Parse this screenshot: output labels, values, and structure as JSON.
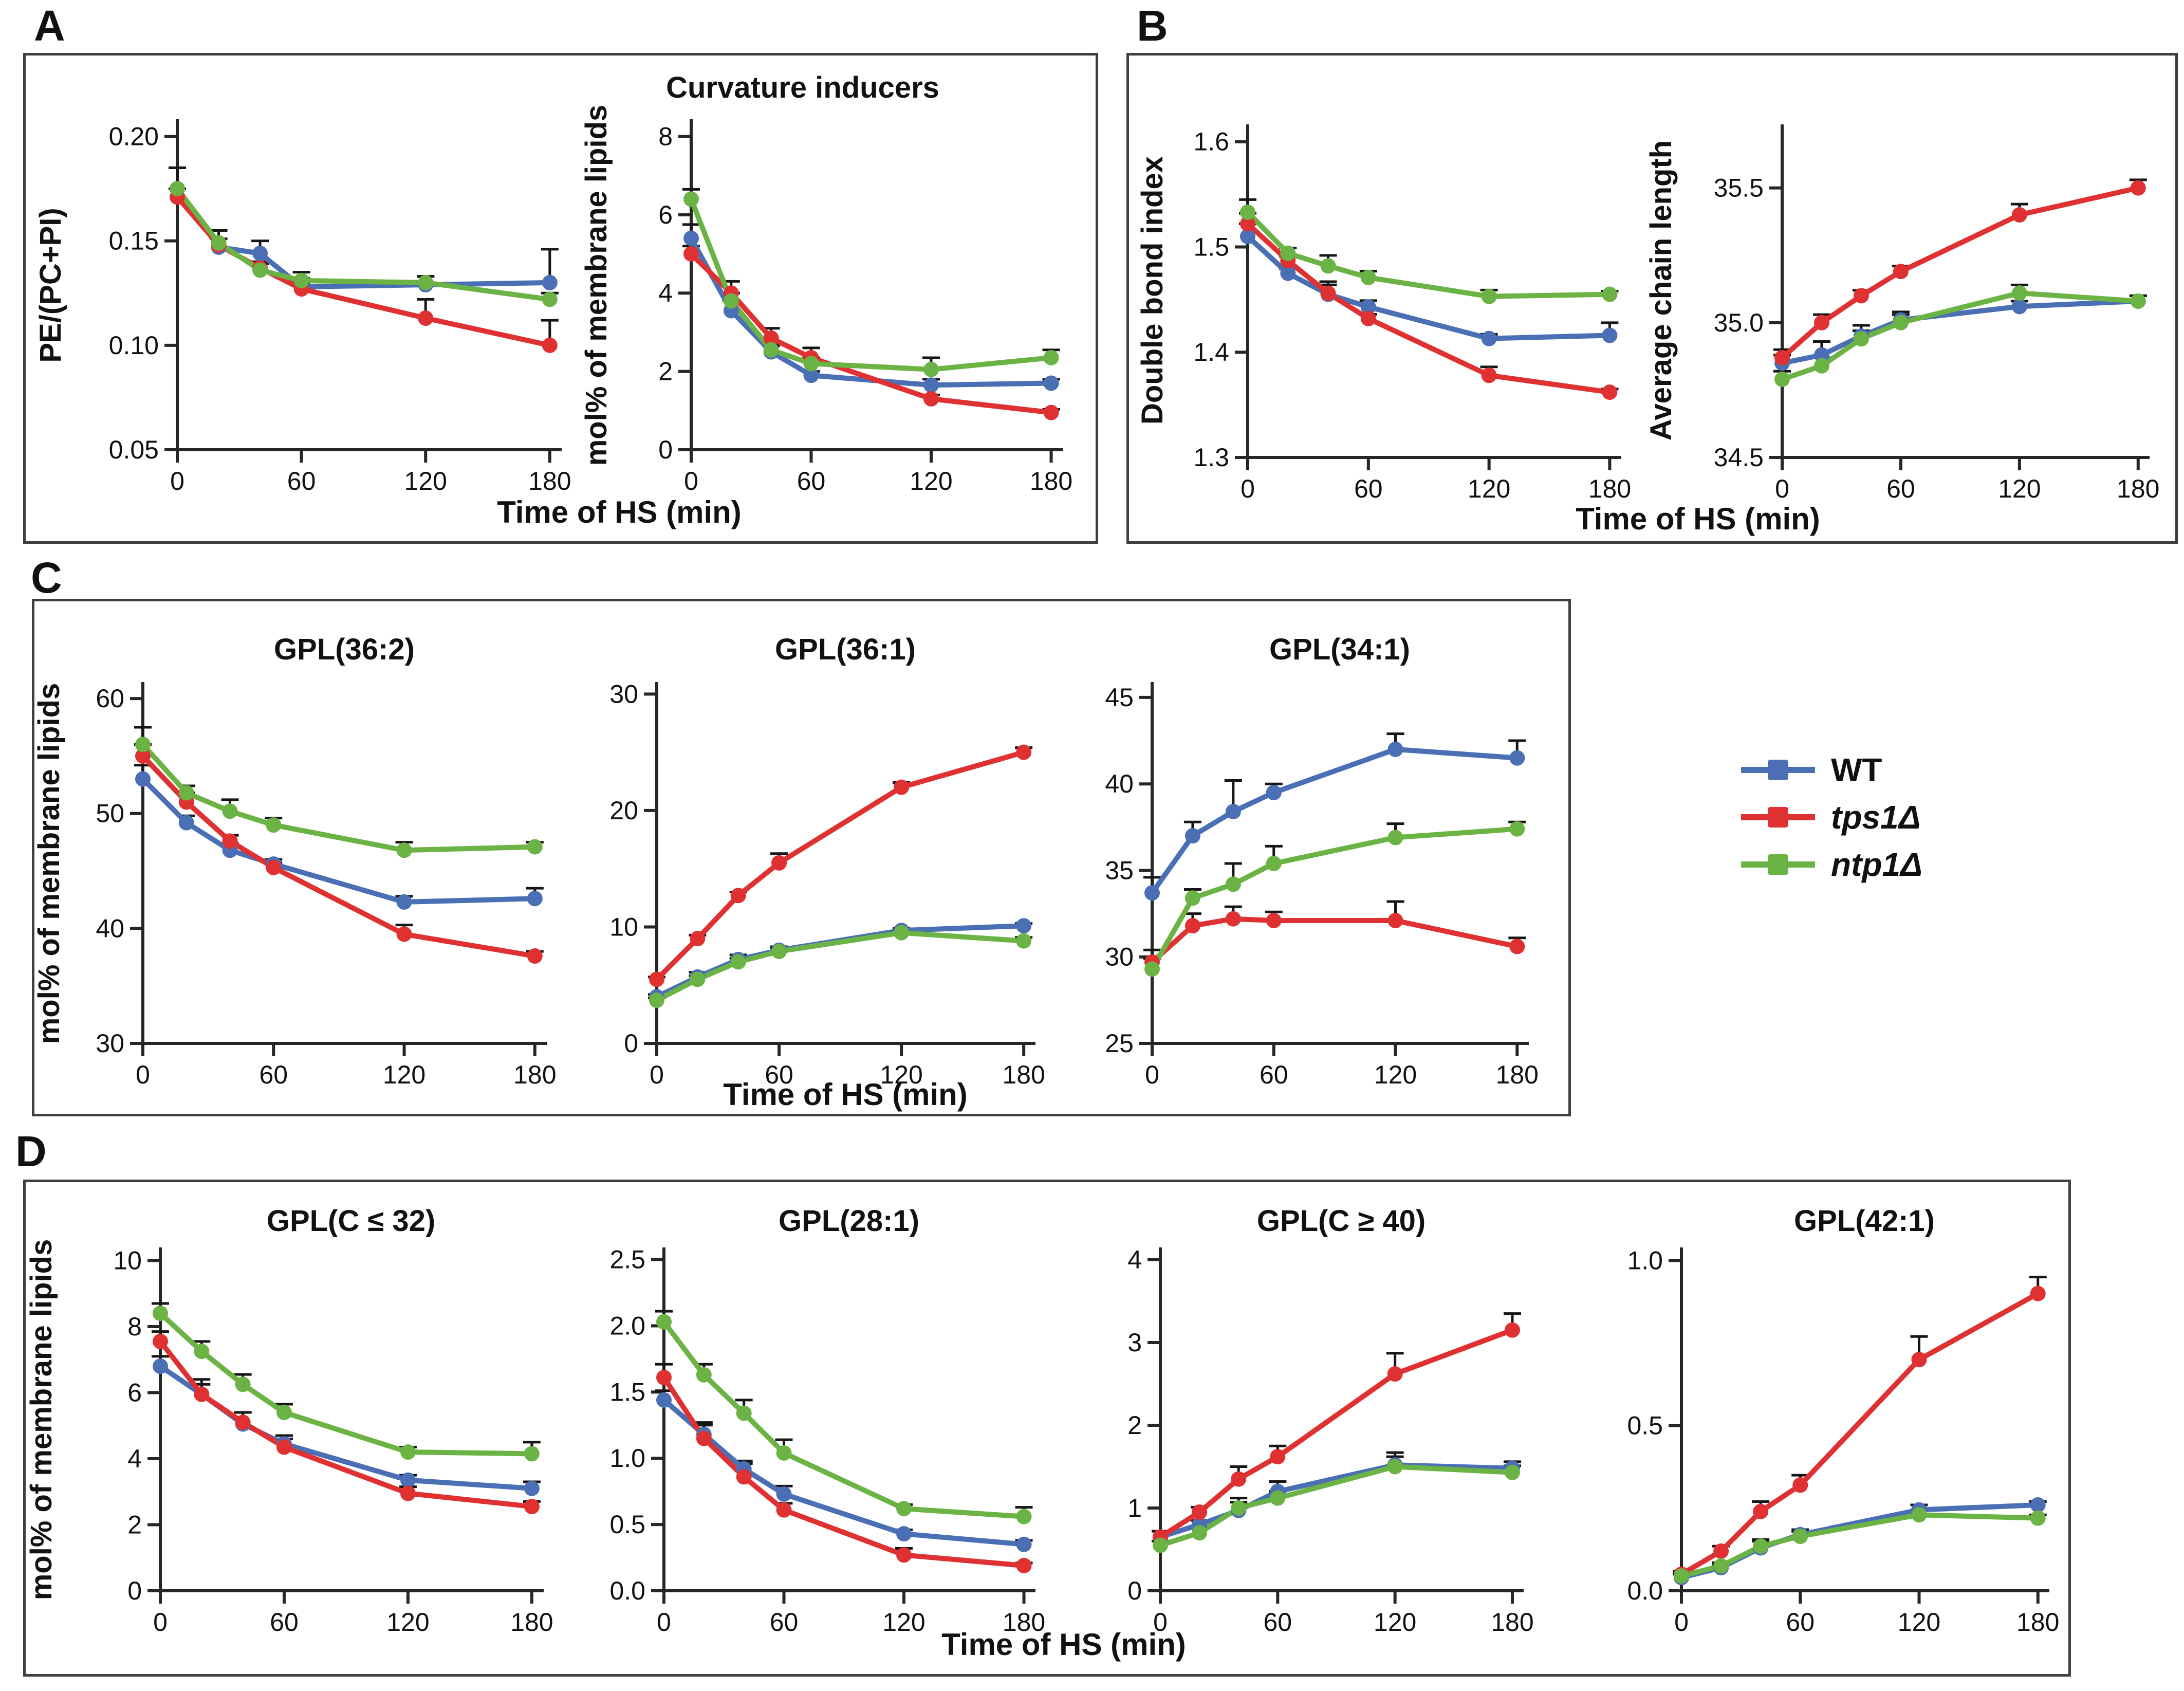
{
  "figure": {
    "panels": [
      {
        "label": "A",
        "xlabel": "Time of HS (min)"
      },
      {
        "label": "B",
        "xlabel": "Time of HS (min)"
      },
      {
        "label": "C",
        "xlabel": "Time of HS (min)"
      },
      {
        "label": "D",
        "xlabel": "Time of HS (min)"
      }
    ]
  },
  "legend": {
    "items": [
      {
        "label": "WT",
        "color": "#4A6FB5",
        "italic": false
      },
      {
        "label": "tps1Δ",
        "color": "#E03132",
        "italic": true
      },
      {
        "label": "ntp1Δ",
        "color": "#6CB345",
        "italic": true
      }
    ]
  },
  "chart_data": [
    {
      "id": "A1",
      "panel": "A",
      "type": "line",
      "title": "",
      "ylabel": "PE/(PC+PI)",
      "x": [
        0,
        20,
        40,
        60,
        120,
        180
      ],
      "xlim": [
        0,
        185
      ],
      "xticks": [
        0,
        60,
        120,
        180
      ],
      "xtick_labels": [
        "0",
        "60",
        "120",
        "180"
      ],
      "ylim": [
        0.05,
        0.2075
      ],
      "yticks": [
        0.05,
        0.1,
        0.15,
        0.2
      ],
      "ytick_labels": [
        "0.05",
        "0.10",
        "0.15",
        "0.20"
      ],
      "series": [
        {
          "name": "WT",
          "values": [
            0.175,
            0.147,
            0.144,
            0.128,
            0.129,
            0.13
          ],
          "err": [
            0.01,
            0.004,
            0.006,
            0.004,
            0.004,
            0.016
          ]
        },
        {
          "name": "tps1Δ",
          "values": [
            0.171,
            0.148,
            0.137,
            0.127,
            0.113,
            0.1
          ],
          "err": [
            0.004,
            0.007,
            0.003,
            0.003,
            0.009,
            0.012
          ]
        },
        {
          "name": "ntp1Δ",
          "values": [
            0.175,
            0.149,
            0.136,
            0.131,
            0.13,
            0.122
          ],
          "err": [
            0.01,
            0.006,
            0.003,
            0.004,
            0.003,
            0.003
          ]
        }
      ]
    },
    {
      "id": "A2",
      "panel": "A",
      "type": "line",
      "title": "Curvature inducers",
      "ylabel": "mol% of membrane lipids",
      "x": [
        0,
        20,
        40,
        60,
        120,
        180
      ],
      "xlim": [
        0,
        185
      ],
      "xticks": [
        0,
        60,
        120,
        180
      ],
      "xtick_labels": [
        "0",
        "60",
        "120",
        "180"
      ],
      "ylim": [
        0,
        8.4
      ],
      "yticks": [
        0,
        2,
        4,
        6,
        8
      ],
      "ytick_labels": [
        "0",
        "2",
        "4",
        "6",
        "8"
      ],
      "series": [
        {
          "name": "WT",
          "values": [
            5.4,
            3.55,
            2.5,
            1.9,
            1.65,
            1.7
          ],
          "err": [
            0.35,
            0.25,
            0.15,
            0.1,
            0.15,
            0.1
          ]
        },
        {
          "name": "tps1Δ",
          "values": [
            5.0,
            4.0,
            2.85,
            2.35,
            1.3,
            0.95
          ],
          "err": [
            0.2,
            0.3,
            0.25,
            0.25,
            0.1,
            0.08
          ]
        },
        {
          "name": "ntp1Δ",
          "values": [
            6.4,
            3.8,
            2.55,
            2.2,
            2.05,
            2.35
          ],
          "err": [
            0.25,
            0.2,
            0.15,
            0.15,
            0.3,
            0.2
          ]
        }
      ]
    },
    {
      "id": "B1",
      "panel": "B",
      "type": "line",
      "title": "",
      "ylabel": "Double bond index",
      "x": [
        0,
        20,
        40,
        60,
        120,
        180
      ],
      "xlim": [
        0,
        185
      ],
      "xticks": [
        0,
        60,
        120,
        180
      ],
      "xtick_labels": [
        "0",
        "60",
        "120",
        "180"
      ],
      "ylim": [
        1.3,
        1.615
      ],
      "yticks": [
        1.3,
        1.4,
        1.5,
        1.6
      ],
      "ytick_labels": [
        "1.3",
        "1.4",
        "1.5",
        "1.6"
      ],
      "series": [
        {
          "name": "WT",
          "values": [
            1.51,
            1.475,
            1.455,
            1.443,
            1.413,
            1.416
          ],
          "err": [
            0.012,
            0.004,
            0.012,
            0.006,
            0.004,
            0.012
          ]
        },
        {
          "name": "tps1Δ",
          "values": [
            1.522,
            1.487,
            1.456,
            1.432,
            1.378,
            1.362
          ],
          "err": [
            0.01,
            0.004,
            0.008,
            0.004,
            0.008,
            0.003
          ]
        },
        {
          "name": "ntp1Δ",
          "values": [
            1.533,
            1.494,
            1.482,
            1.471,
            1.453,
            1.455
          ],
          "err": [
            0.012,
            0.005,
            0.01,
            0.006,
            0.006,
            0.003
          ]
        }
      ]
    },
    {
      "id": "B2",
      "panel": "B",
      "type": "line",
      "title": "",
      "ylabel": "Average chain length",
      "x": [
        0,
        20,
        40,
        60,
        120,
        180
      ],
      "xlim": [
        0,
        185
      ],
      "xticks": [
        0,
        60,
        120,
        180
      ],
      "xtick_labels": [
        "0",
        "60",
        "120",
        "180"
      ],
      "ylim": [
        34.5,
        35.73
      ],
      "yticks": [
        34.5,
        35.0,
        35.5
      ],
      "ytick_labels": [
        "34.5",
        "35.0",
        "35.5"
      ],
      "series": [
        {
          "name": "WT",
          "values": [
            34.85,
            34.88,
            34.95,
            35.01,
            35.06,
            35.08
          ],
          "err": [
            0.03,
            0.05,
            0.04,
            0.03,
            0.02,
            0.02
          ]
        },
        {
          "name": "tps1Δ",
          "values": [
            34.87,
            35.0,
            35.1,
            35.19,
            35.4,
            35.5
          ],
          "err": [
            0.03,
            0.03,
            0.02,
            0.02,
            0.04,
            0.03
          ]
        },
        {
          "name": "ntp1Δ",
          "values": [
            34.79,
            34.84,
            34.94,
            35.0,
            35.11,
            35.08
          ],
          "err": [
            0.03,
            0.03,
            0.03,
            0.03,
            0.03,
            0.02
          ]
        }
      ]
    },
    {
      "id": "C1",
      "panel": "C",
      "type": "line",
      "title": "GPL(36:2)",
      "ylabel": "mol% of membrane lipids",
      "x": [
        0,
        20,
        40,
        60,
        120,
        180
      ],
      "xlim": [
        0,
        185
      ],
      "xticks": [
        0,
        60,
        120,
        180
      ],
      "xtick_labels": [
        "0",
        "60",
        "120",
        "180"
      ],
      "ylim": [
        30,
        61.3
      ],
      "yticks": [
        30,
        40,
        50,
        60
      ],
      "ytick_labels": [
        "30",
        "40",
        "50",
        "60"
      ],
      "series": [
        {
          "name": "WT",
          "values": [
            53.0,
            49.2,
            46.8,
            45.6,
            42.3,
            42.6
          ],
          "err": [
            1.2,
            0.6,
            0.6,
            0.4,
            0.5,
            0.9
          ]
        },
        {
          "name": "tps1Δ",
          "values": [
            55.0,
            51.0,
            47.6,
            45.3,
            39.5,
            37.6
          ],
          "err": [
            1.0,
            0.8,
            0.5,
            0.4,
            0.8,
            0.4
          ]
        },
        {
          "name": "ntp1Δ",
          "values": [
            56.0,
            51.8,
            50.2,
            49.0,
            46.8,
            47.1
          ],
          "err": [
            1.5,
            0.6,
            1.0,
            0.6,
            0.7,
            0.4
          ]
        }
      ]
    },
    {
      "id": "C2",
      "panel": "C",
      "type": "line",
      "title": "GPL(36:1)",
      "ylabel": "",
      "x": [
        0,
        20,
        40,
        60,
        120,
        180
      ],
      "xlim": [
        0,
        185
      ],
      "xticks": [
        0,
        60,
        120,
        180
      ],
      "xtick_labels": [
        "0",
        "60",
        "120",
        "180"
      ],
      "ylim": [
        0,
        30.9
      ],
      "yticks": [
        0,
        10,
        20,
        30
      ],
      "ytick_labels": [
        "0",
        "10",
        "20",
        "30"
      ],
      "series": [
        {
          "name": "WT",
          "values": [
            4.0,
            5.7,
            7.2,
            8.0,
            9.7,
            10.1
          ],
          "err": [
            0.2,
            0.4,
            0.4,
            0.3,
            0.2,
            0.2
          ]
        },
        {
          "name": "tps1Δ",
          "values": [
            5.5,
            9.0,
            12.7,
            15.5,
            22.0,
            25.0
          ],
          "err": [
            0.2,
            0.3,
            0.3,
            0.8,
            0.4,
            0.4
          ]
        },
        {
          "name": "ntp1Δ",
          "values": [
            3.7,
            5.5,
            7.0,
            7.9,
            9.5,
            8.8
          ],
          "err": [
            0.2,
            0.3,
            0.3,
            0.3,
            0.3,
            0.3
          ]
        }
      ]
    },
    {
      "id": "C3",
      "panel": "C",
      "type": "line",
      "title": "GPL(34:1)",
      "ylabel": "",
      "x": [
        0,
        20,
        40,
        60,
        120,
        180
      ],
      "xlim": [
        0,
        185
      ],
      "xticks": [
        0,
        60,
        120,
        180
      ],
      "xtick_labels": [
        "0",
        "60",
        "120",
        "180"
      ],
      "ylim": [
        25,
        45.8
      ],
      "yticks": [
        25,
        30,
        35,
        40,
        45
      ],
      "ytick_labels": [
        "25",
        "30",
        "35",
        "40",
        "45"
      ],
      "series": [
        {
          "name": "WT",
          "values": [
            33.7,
            37.0,
            38.4,
            39.5,
            42.0,
            41.5
          ],
          "err": [
            0.9,
            0.8,
            1.8,
            0.5,
            0.9,
            1.0
          ]
        },
        {
          "name": "tps1Δ",
          "values": [
            29.7,
            31.8,
            32.2,
            32.1,
            32.1,
            30.6
          ],
          "err": [
            0.7,
            0.7,
            0.7,
            0.5,
            1.1,
            0.5
          ]
        },
        {
          "name": "ntp1Δ",
          "values": [
            29.3,
            33.4,
            34.2,
            35.4,
            36.9,
            37.4
          ],
          "err": [
            0.6,
            0.5,
            1.2,
            1.0,
            0.8,
            0.4
          ]
        }
      ]
    },
    {
      "id": "D1",
      "panel": "D",
      "type": "line",
      "title": "GPL(C ≤ 32)",
      "ylabel": "mol% of membrane lipids",
      "x": [
        0,
        20,
        40,
        60,
        120,
        180
      ],
      "xlim": [
        0,
        185
      ],
      "xticks": [
        0,
        60,
        120,
        180
      ],
      "xtick_labels": [
        "0",
        "60",
        "120",
        "180"
      ],
      "ylim": [
        0,
        10.35
      ],
      "yticks": [
        0,
        2,
        4,
        6,
        8,
        10
      ],
      "ytick_labels": [
        "0",
        "2",
        "4",
        "6",
        "8",
        "10"
      ],
      "series": [
        {
          "name": "WT",
          "values": [
            6.8,
            5.95,
            5.05,
            4.45,
            3.35,
            3.1
          ],
          "err": [
            0.3,
            0.3,
            0.35,
            0.25,
            0.15,
            0.2
          ]
        },
        {
          "name": "tps1Δ",
          "values": [
            7.55,
            5.95,
            5.1,
            4.35,
            2.95,
            2.55
          ],
          "err": [
            0.3,
            0.45,
            0.3,
            0.25,
            0.2,
            0.15
          ]
        },
        {
          "name": "ntp1Δ",
          "values": [
            8.4,
            7.25,
            6.25,
            5.4,
            4.2,
            4.15
          ],
          "err": [
            0.3,
            0.3,
            0.3,
            0.25,
            0.15,
            0.35
          ]
        }
      ]
    },
    {
      "id": "D2",
      "panel": "D",
      "type": "line",
      "title": "GPL(28:1)",
      "ylabel": "",
      "x": [
        0,
        20,
        40,
        60,
        120,
        180
      ],
      "xlim": [
        0,
        185
      ],
      "xticks": [
        0,
        60,
        120,
        180
      ],
      "xtick_labels": [
        "0",
        "60",
        "120",
        "180"
      ],
      "ylim": [
        0,
        2.58
      ],
      "yticks": [
        0,
        0.5,
        1.0,
        1.5,
        2.0,
        2.5
      ],
      "ytick_labels": [
        "0.0",
        "0.5",
        "1.0",
        "1.5",
        "2.0",
        "2.5"
      ],
      "series": [
        {
          "name": "WT",
          "values": [
            1.44,
            1.18,
            0.92,
            0.73,
            0.43,
            0.35
          ],
          "err": [
            0.07,
            0.09,
            0.06,
            0.06,
            0.03,
            0.03
          ]
        },
        {
          "name": "tps1Δ",
          "values": [
            1.61,
            1.15,
            0.86,
            0.61,
            0.27,
            0.19
          ],
          "err": [
            0.1,
            0.1,
            0.1,
            0.05,
            0.05,
            0.02
          ]
        },
        {
          "name": "ntp1Δ",
          "values": [
            2.03,
            1.63,
            1.34,
            1.04,
            0.62,
            0.56
          ],
          "err": [
            0.08,
            0.08,
            0.1,
            0.1,
            0.03,
            0.07
          ]
        }
      ]
    },
    {
      "id": "D3",
      "panel": "D",
      "type": "line",
      "title": "GPL(C ≥ 40)",
      "ylabel": "",
      "x": [
        0,
        20,
        40,
        60,
        120,
        180
      ],
      "xlim": [
        0,
        185
      ],
      "xticks": [
        0,
        60,
        120,
        180
      ],
      "xtick_labels": [
        "0",
        "60",
        "120",
        "180"
      ],
      "ylim": [
        0,
        4.13
      ],
      "yticks": [
        0,
        1,
        2,
        3,
        4
      ],
      "ytick_labels": [
        "0",
        "1",
        "2",
        "3",
        "4"
      ],
      "series": [
        {
          "name": "WT",
          "values": [
            0.65,
            0.8,
            0.97,
            1.2,
            1.52,
            1.48
          ],
          "err": [
            0.07,
            0.05,
            0.1,
            0.12,
            0.15,
            0.08
          ]
        },
        {
          "name": "tps1Δ",
          "values": [
            0.65,
            0.95,
            1.35,
            1.62,
            2.62,
            3.15
          ],
          "err": [
            0.07,
            0.06,
            0.15,
            0.13,
            0.25,
            0.2
          ]
        },
        {
          "name": "ntp1Δ",
          "values": [
            0.55,
            0.7,
            1.0,
            1.12,
            1.5,
            1.43
          ],
          "err": [
            0.05,
            0.05,
            0.12,
            0.08,
            0.12,
            0.08
          ]
        }
      ]
    },
    {
      "id": "D4",
      "panel": "D",
      "type": "line",
      "title": "GPL(42:1)",
      "ylabel": "",
      "x": [
        0,
        20,
        40,
        60,
        120,
        180
      ],
      "xlim": [
        0,
        185
      ],
      "xticks": [
        0,
        60,
        120,
        180
      ],
      "xtick_labels": [
        "0",
        "60",
        "120",
        "180"
      ],
      "ylim": [
        0,
        1.035
      ],
      "yticks": [
        0,
        0.5,
        1.0
      ],
      "ytick_labels": [
        "0.0",
        "0.5",
        "1.0"
      ],
      "series": [
        {
          "name": "WT",
          "values": [
            0.04,
            0.07,
            0.13,
            0.17,
            0.245,
            0.26
          ],
          "err": [
            0.01,
            0.01,
            0.02,
            0.015,
            0.015,
            0.01
          ]
        },
        {
          "name": "tps1Δ",
          "values": [
            0.05,
            0.12,
            0.24,
            0.32,
            0.7,
            0.9
          ],
          "err": [
            0.01,
            0.015,
            0.03,
            0.03,
            0.07,
            0.05
          ]
        },
        {
          "name": "ntp1Δ",
          "values": [
            0.045,
            0.075,
            0.135,
            0.165,
            0.23,
            0.22
          ],
          "err": [
            0.008,
            0.01,
            0.02,
            0.015,
            0.015,
            0.01
          ]
        }
      ]
    }
  ]
}
